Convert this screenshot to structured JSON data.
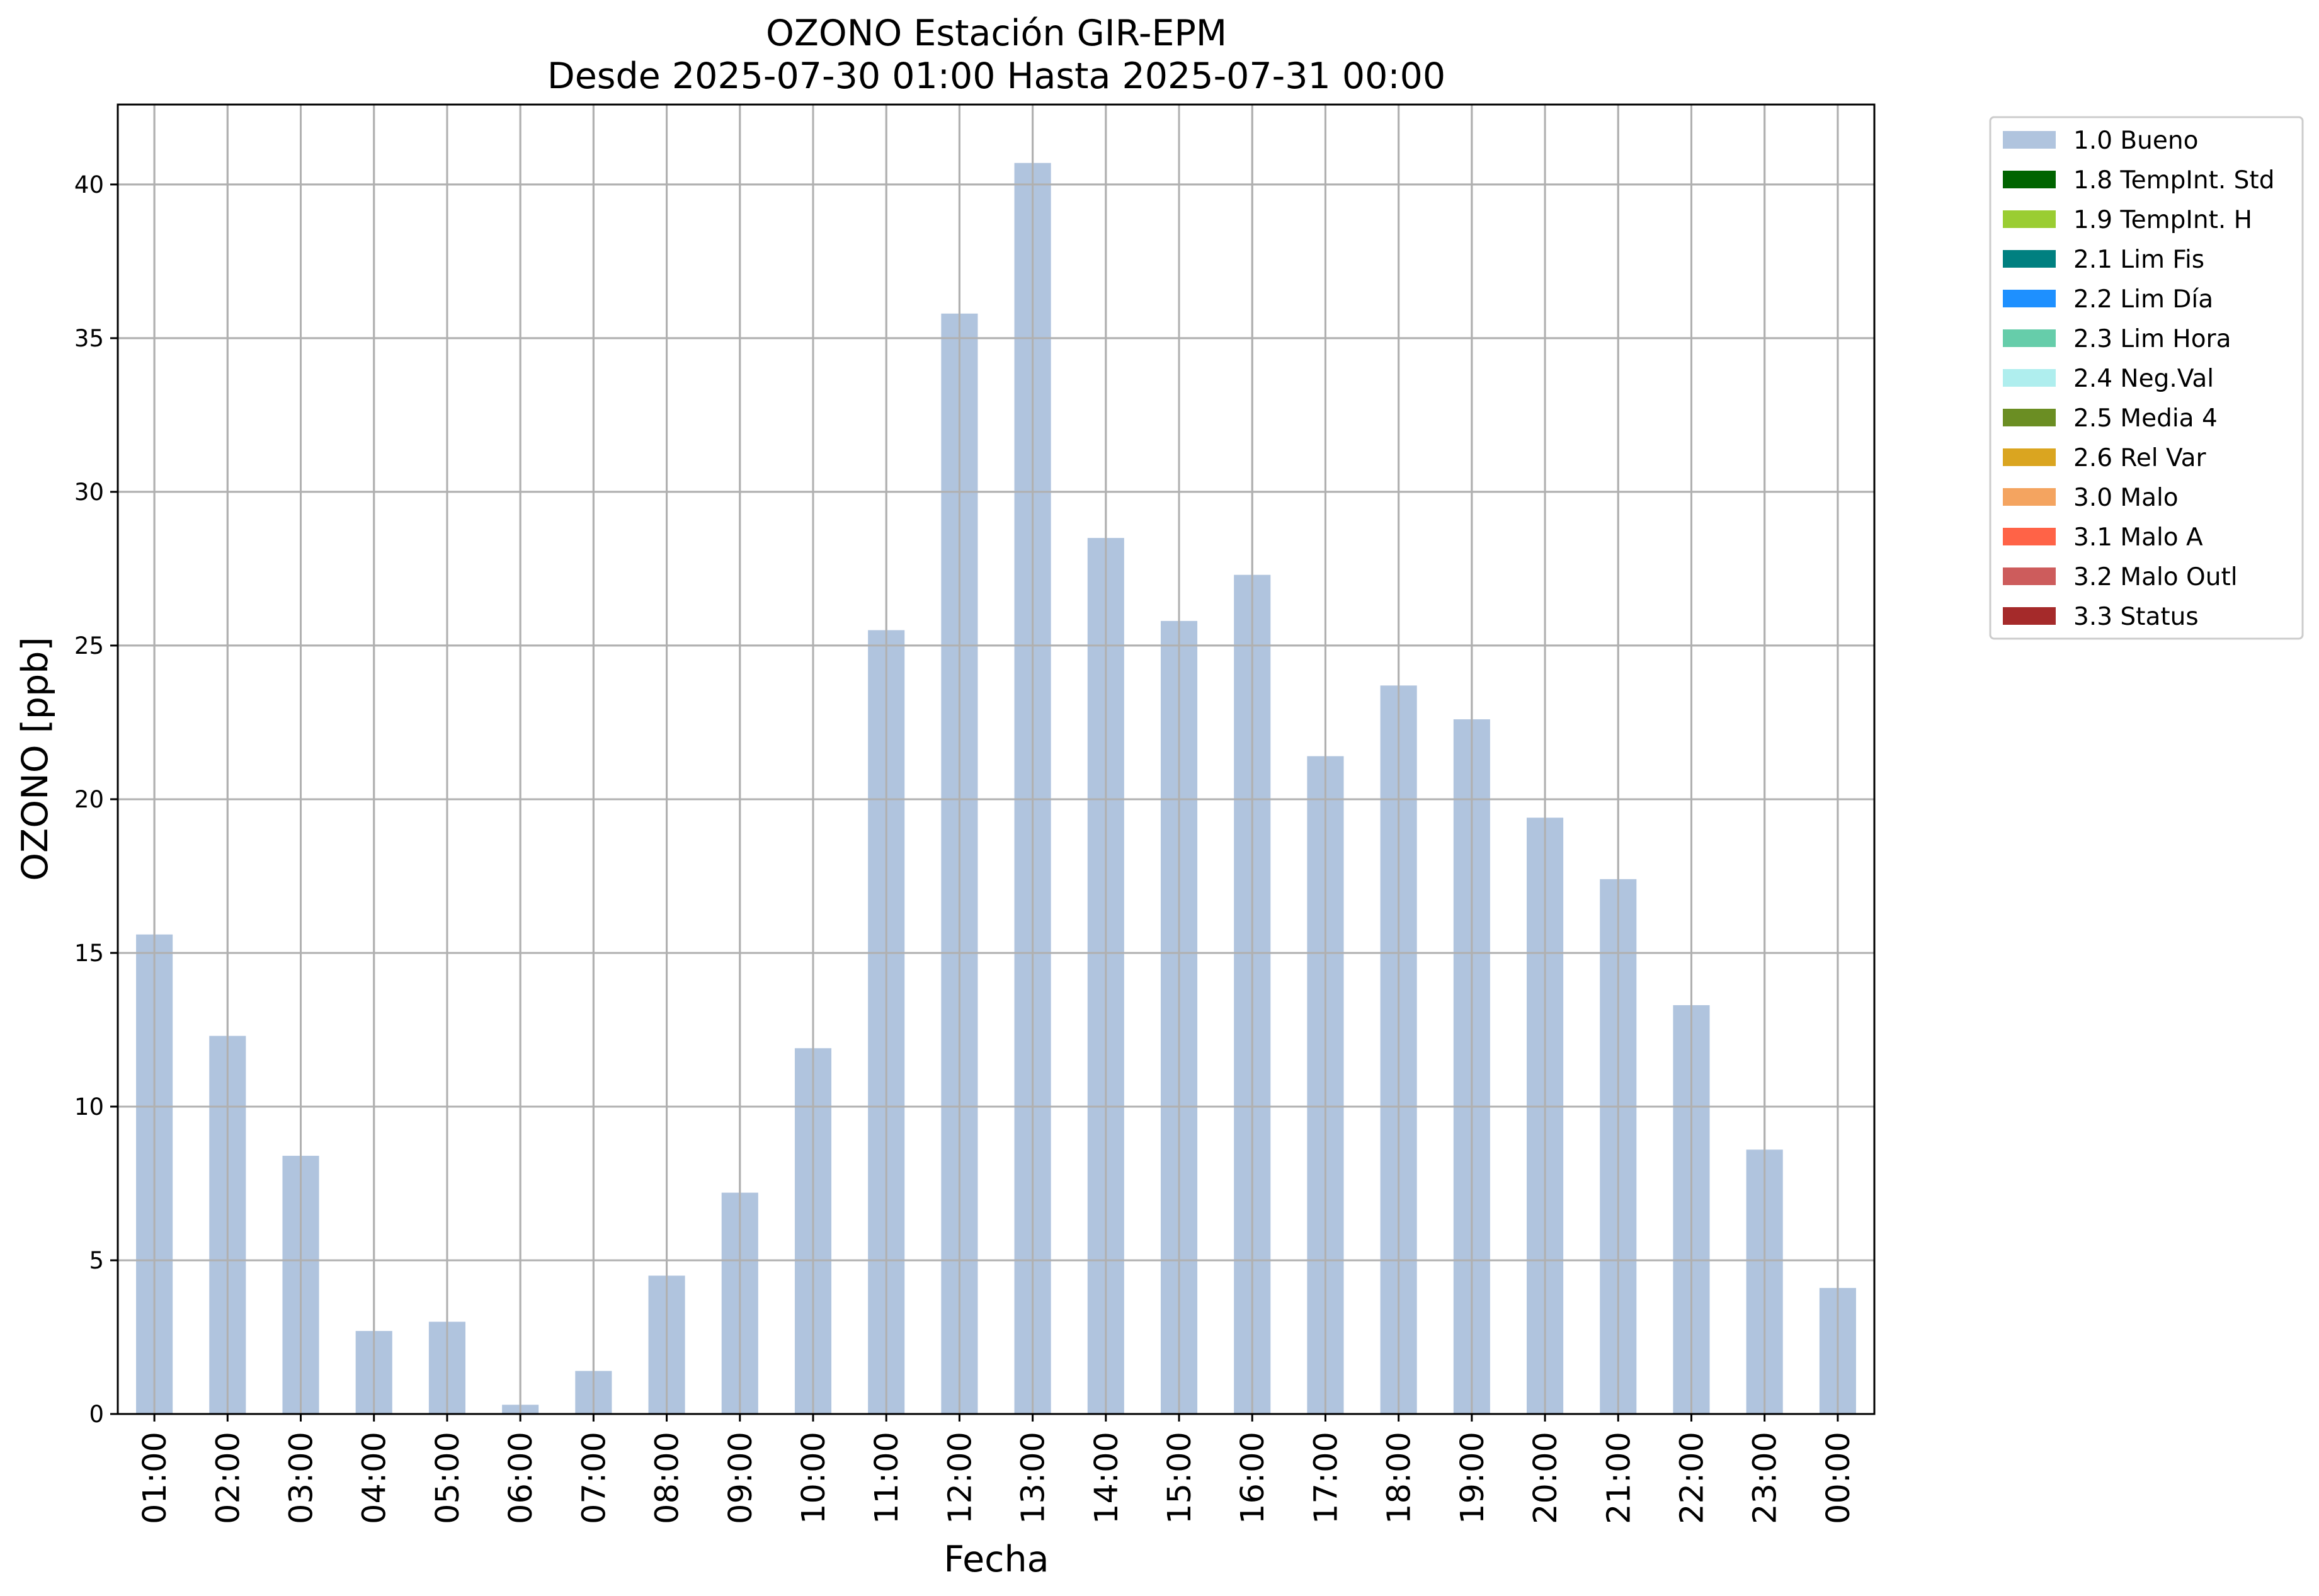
{
  "chart_data": {
    "type": "bar",
    "title": "OZONO Estación GIR-EPM",
    "subtitle": "Desde 2025-07-30 01:00 Hasta 2025-07-31 00:00",
    "xlabel": "Fecha",
    "ylabel": "OZONO [ppb]",
    "ylim": [
      0,
      42.6
    ],
    "yticks": [
      0,
      5,
      10,
      15,
      20,
      25,
      30,
      35,
      40
    ],
    "grid": true,
    "legend_position": "outside-top-right",
    "categories": [
      "01:00",
      "02:00",
      "03:00",
      "04:00",
      "05:00",
      "06:00",
      "07:00",
      "08:00",
      "09:00",
      "10:00",
      "11:00",
      "12:00",
      "13:00",
      "14:00",
      "15:00",
      "16:00",
      "17:00",
      "18:00",
      "19:00",
      "20:00",
      "21:00",
      "22:00",
      "23:00",
      "00:00"
    ],
    "series": [
      {
        "name": "1.0 Bueno",
        "color": "#b0c4de",
        "values": [
          15.6,
          12.3,
          8.4,
          2.7,
          3.0,
          0.3,
          1.4,
          4.5,
          7.2,
          11.9,
          25.5,
          35.8,
          40.7,
          28.5,
          25.8,
          27.3,
          21.4,
          23.7,
          22.6,
          19.4,
          17.4,
          13.3,
          8.6,
          4.1
        ]
      }
    ],
    "legend": [
      {
        "label": "1.0 Bueno",
        "color": "#b0c4de"
      },
      {
        "label": "1.8 TempInt. Std",
        "color": "#006400"
      },
      {
        "label": "1.9 TempInt. H",
        "color": "#9acd32"
      },
      {
        "label": "2.1 Lim Fis",
        "color": "#008080"
      },
      {
        "label": "2.2 Lim Día",
        "color": "#1e90ff"
      },
      {
        "label": "2.3 Lim Hora",
        "color": "#66cdaa"
      },
      {
        "label": "2.4 Neg.Val",
        "color": "#afeeee"
      },
      {
        "label": "2.5 Media 4",
        "color": "#6b8e23"
      },
      {
        "label": "2.6 Rel Var",
        "color": "#daa520"
      },
      {
        "label": "3.0 Malo",
        "color": "#f4a460"
      },
      {
        "label": "3.1 Malo A",
        "color": "#ff6347"
      },
      {
        "label": "3.2 Malo Outl",
        "color": "#cd5c5c"
      },
      {
        "label": "3.3 Status",
        "color": "#a52a2a"
      }
    ]
  }
}
